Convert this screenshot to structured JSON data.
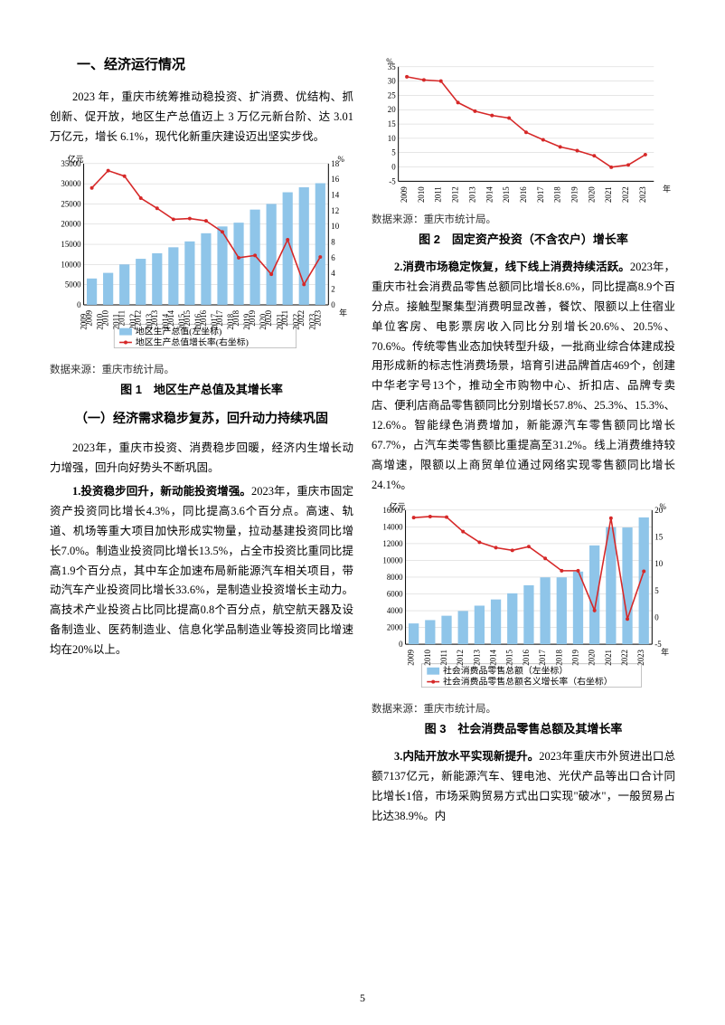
{
  "page_number": "5",
  "left": {
    "heading1": "一、经济运行情况",
    "intro": "2023 年，重庆市统筹推动稳投资、扩消费、优结构、抓创新、促开放，地区生产总值迈上 3 万亿元新台阶、达 3.01 万亿元，增长 6.1%，现代化新重庆建设迈出坚实步伐。",
    "chart1": {
      "type": "bar+line-dual-axis",
      "years": [
        "2009",
        "2010",
        "2011",
        "2012",
        "2013",
        "2014",
        "2015",
        "2016",
        "2017",
        "2018",
        "2019",
        "2020",
        "2021",
        "2022",
        "2023"
      ],
      "bar_values": [
        6530,
        7926,
        10011,
        11410,
        12783,
        14263,
        15718,
        17741,
        19425,
        20363,
        23606,
        25003,
        27894,
        29129,
        30146
      ],
      "line_values": [
        14.9,
        17.1,
        16.4,
        13.6,
        12.3,
        10.9,
        11.0,
        10.7,
        9.3,
        6.0,
        6.3,
        3.9,
        8.3,
        2.6,
        6.1
      ],
      "left_unit": "亿元",
      "right_unit": "%",
      "left_ticks": [
        0,
        5000,
        10000,
        15000,
        20000,
        25000,
        30000,
        35000
      ],
      "right_ticks": [
        0,
        2,
        4,
        6,
        8,
        10,
        12,
        14,
        16,
        18
      ],
      "x_unit": "年",
      "legend_bar": "地区生产总值(左坐标)",
      "legend_line": "地区生产总值增长率(右坐标)",
      "bar_color": "#8fc5e9",
      "line_color": "#d62828",
      "grid_color": "#cccccc",
      "axis_color": "#000000",
      "bg": "#ffffff",
      "font_size_axis": 9,
      "font_size_legend": 10
    },
    "source1": "数据来源：重庆市统计局。",
    "caption1": "图 1　地区生产总值及其增长率",
    "heading2": "（一）经济需求稳步复苏，回升动力持续巩固",
    "p2": "2023年，重庆市投资、消费稳步回暖，经济内生增长动力增强，回升向好势头不断巩固。",
    "p3_lead": "1.投资稳步回升，新动能投资增强。",
    "p3": "2023年，重庆市固定资产投资同比增长4.3%，同比提高3.6个百分点。高速、轨道、机场等重大项目加快形成实物量，拉动基建投资同比增长7.0%。制造业投资同比增长13.5%，占全市投资比重同比提高1.9个百分点，其中车企加速布局新能源汽车相关项目，带动汽车产业投资同比增长33.6%，是制造业投资增长主动力。高技术产业投资占比同比提高0.8个百分点，航空航天器及设备制造业、医药制造业、信息化学品制造业等投资同比增速均在20%以上。"
  },
  "right": {
    "chart2": {
      "type": "line",
      "years": [
        "2009",
        "2010",
        "2011",
        "2012",
        "2013",
        "2014",
        "2015",
        "2016",
        "2017",
        "2018",
        "2019",
        "2020",
        "2021",
        "2022",
        "2023"
      ],
      "values": [
        31.5,
        30.4,
        30.0,
        22.5,
        19.5,
        18.0,
        17.1,
        12.1,
        9.5,
        7.0,
        5.7,
        3.9,
        -0.1,
        0.7,
        4.3
      ],
      "y_unit": "%",
      "x_unit": "年",
      "y_ticks": [
        -5,
        0,
        5,
        10,
        15,
        20,
        25,
        30,
        35
      ],
      "line_color": "#d62828",
      "grid_color": "#cccccc",
      "axis_color": "#000000",
      "bg": "#ffffff",
      "font_size_axis": 9
    },
    "source2": "数据来源：重庆市统计局。",
    "caption2": "图 2　固定资产投资（不含农户）增长率",
    "p4_lead": "2.消费市场稳定恢复，线下线上消费持续活跃。",
    "p4": "2023年，重庆市社会消费品零售总额同比增长8.6%，同比提高8.9个百分点。接触型聚集型消费明显改善，餐饮、限额以上住宿业单位客房、电影票房收入同比分别增长20.6%、20.5%、70.6%。传统零售业态加快转型升级，一批商业综合体建成投用形成新的标志性消费场景，培育引进品牌首店469个，创建中华老字号13个，推动全市购物中心、折扣店、品牌专卖店、便利店商品零售额同比分别增长57.8%、25.3%、15.3%、12.6%。智能绿色消费增加，新能源汽车零售额同比增长 67.7%，占汽车类零售额比重提高至31.2%。线上消费维持较高增速，限额以上商贸单位通过网络实现零售额同比增长24.1%。",
    "chart3": {
      "type": "bar+line-dual-axis",
      "years": [
        "2009",
        "2010",
        "2011",
        "2012",
        "2013",
        "2014",
        "2015",
        "2016",
        "2017",
        "2018",
        "2019",
        "2020",
        "2021",
        "2022",
        "2023"
      ],
      "bar_values": [
        2479,
        2878,
        3396,
        3961,
        4600,
        5340,
        6072,
        7034,
        7977,
        7977,
        8668,
        11787,
        13968,
        13926,
        15130
      ],
      "line_values": [
        18.6,
        18.8,
        18.7,
        16.0,
        14.0,
        13.0,
        12.5,
        13.2,
        11.0,
        8.7,
        8.7,
        1.3,
        18.5,
        -0.3,
        8.6
      ],
      "left_unit": "亿元",
      "right_unit": "%",
      "left_ticks": [
        0,
        2000,
        4000,
        6000,
        8000,
        10000,
        12000,
        14000,
        16000
      ],
      "right_ticks": [
        -5,
        0,
        5,
        10,
        15,
        20
      ],
      "x_unit": "年",
      "legend_bar": "社会消费品零售总额（左坐标）",
      "legend_line": "社会消费品零售总额名义增长率（右坐标）",
      "bar_color": "#8fc5e9",
      "line_color": "#d62828",
      "grid_color": "#cccccc",
      "axis_color": "#000000",
      "bg": "#ffffff",
      "font_size_axis": 9,
      "font_size_legend": 10
    },
    "source3": "数据来源：重庆市统计局。",
    "caption3": "图 3　社会消费品零售总额及其增长率",
    "p5_lead": "3.内陆开放水平实现新提升。",
    "p5": "2023年重庆市外贸进出口总额7137亿元，新能源汽车、锂电池、光伏产品等出口合计同比增长1倍，市场采购贸易方式出口实现\"破冰\"，一般贸易占比达38.9%。内"
  }
}
